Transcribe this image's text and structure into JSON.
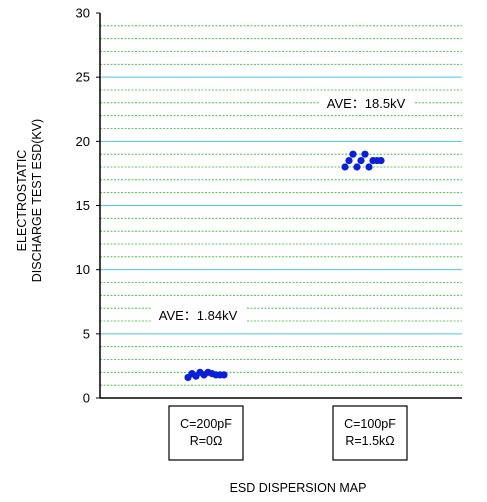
{
  "chart_data": {
    "type": "scatter",
    "title": "",
    "footer": "ESD DISPERSION MAP",
    "ylabel_lines": [
      "ELECTROSTATIC",
      "DISCHARGE TEST ESD(KV)"
    ],
    "ylim": [
      0,
      30
    ],
    "y_ticks": [
      0,
      5,
      10,
      15,
      20,
      25,
      30
    ],
    "categories": [
      {
        "lines": [
          "C=200pF",
          "R=0Ω"
        ]
      },
      {
        "lines": [
          "C=100pF",
          "R=1.5kΩ"
        ]
      }
    ],
    "series": [
      {
        "category_index": 0,
        "annotation": "AVE：1.84kV",
        "points": [
          1.6,
          1.9,
          1.7,
          2.0,
          1.8,
          2.0,
          1.9,
          1.8,
          1.8,
          1.8
        ]
      },
      {
        "category_index": 1,
        "annotation": "AVE：18.5kV",
        "points": [
          18.0,
          18.5,
          19.0,
          18.0,
          18.5,
          19.0,
          18.0,
          18.5,
          18.5,
          18.5
        ]
      }
    ],
    "grid": {
      "major": true,
      "minor": true
    },
    "colors": {
      "points": "#0a1fd6",
      "major_grid": "#4fc3e8",
      "minor_grid": "#2eb82e",
      "axis": "#000000"
    }
  }
}
